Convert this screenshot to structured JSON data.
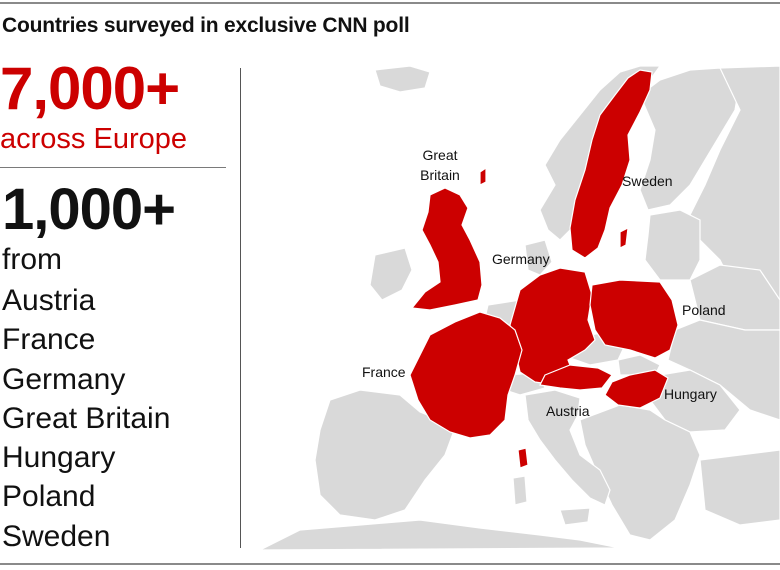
{
  "header": {
    "title": "Countries surveyed in exclusive CNN poll"
  },
  "summary": {
    "total_value": "7,000+",
    "total_label": "across Europe",
    "per_country_value": "1,000+",
    "per_country_label": "from"
  },
  "countries": [
    "Austria",
    "France",
    "Germany",
    "Great Britain",
    "Hungary",
    "Poland",
    "Sweden"
  ],
  "map": {
    "labels": {
      "great_britain_line1": "Great",
      "great_britain_line2": "Britain",
      "sweden": "Sweden",
      "germany": "Germany",
      "poland": "Poland",
      "france": "France",
      "austria": "Austria",
      "hungary": "Hungary"
    },
    "highlight_color": "#cc0000",
    "land_color": "#d9d9d9",
    "sea_color": "#ffffff"
  }
}
